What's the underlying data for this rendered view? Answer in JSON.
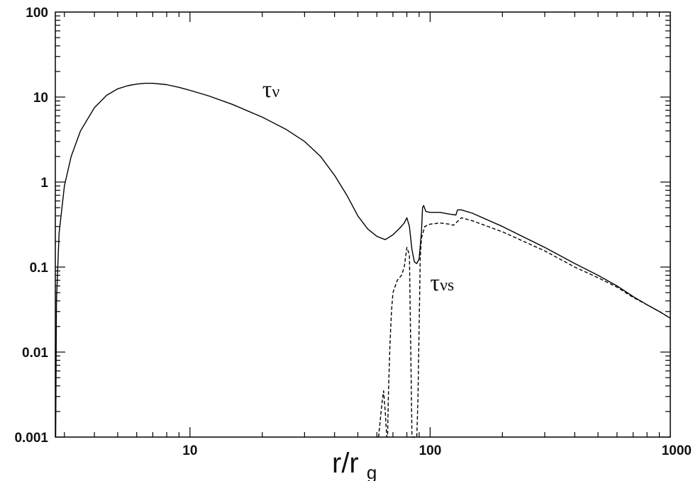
{
  "chart_data": {
    "type": "line",
    "title": "",
    "xlabel": {
      "main": "r/r",
      "sub": "g"
    },
    "ylabel": "",
    "xscale": "log",
    "yscale": "log",
    "xlim": [
      2.75,
      1000
    ],
    "ylim": [
      0.001,
      100
    ],
    "grid": false,
    "x_tick_labels": [
      {
        "value": 10,
        "label": "10"
      },
      {
        "value": 100,
        "label": "100"
      },
      {
        "value": 1000,
        "label": "1000"
      }
    ],
    "y_tick_labels": [
      {
        "value": 0.001,
        "label": "0.001"
      },
      {
        "value": 0.01,
        "label": "0.01"
      },
      {
        "value": 0.1,
        "label": "0.1"
      },
      {
        "value": 1,
        "label": "1"
      },
      {
        "value": 10,
        "label": "10"
      },
      {
        "value": 100,
        "label": "100"
      }
    ],
    "annotations": [
      {
        "main": "τ",
        "sub": "ν",
        "x": 20,
        "y": 10
      },
      {
        "main": "τ",
        "sub": "νs",
        "x": 100,
        "y": 0.053
      }
    ],
    "series": [
      {
        "style": "solid",
        "color": "#000000",
        "points": [
          [
            2.76,
            0.001
          ],
          [
            2.78,
            0.04
          ],
          [
            2.85,
            0.25
          ],
          [
            3.0,
            0.9
          ],
          [
            3.2,
            2.0
          ],
          [
            3.5,
            4.0
          ],
          [
            4.0,
            7.5
          ],
          [
            4.5,
            10.5
          ],
          [
            5.0,
            12.5
          ],
          [
            5.5,
            13.6
          ],
          [
            6.0,
            14.2
          ],
          [
            6.5,
            14.5
          ],
          [
            7.0,
            14.5
          ],
          [
            8.0,
            14.0
          ],
          [
            9.0,
            13.0
          ],
          [
            10.0,
            12.0
          ],
          [
            12.0,
            10.3
          ],
          [
            15.0,
            8.2
          ],
          [
            20.0,
            5.8
          ],
          [
            25.0,
            4.2
          ],
          [
            30.0,
            3.0
          ],
          [
            35.0,
            2.0
          ],
          [
            40.0,
            1.2
          ],
          [
            45.0,
            0.7
          ],
          [
            50.0,
            0.4
          ],
          [
            55.0,
            0.28
          ],
          [
            60.0,
            0.23
          ],
          [
            65.0,
            0.21
          ],
          [
            70.0,
            0.24
          ],
          [
            75.0,
            0.29
          ],
          [
            78.0,
            0.33
          ],
          [
            80.0,
            0.38
          ],
          [
            82.0,
            0.3
          ],
          [
            84.0,
            0.16
          ],
          [
            86.0,
            0.115
          ],
          [
            88.0,
            0.11
          ],
          [
            90.0,
            0.125
          ],
          [
            92.0,
            0.26
          ],
          [
            93.0,
            0.5
          ],
          [
            94.0,
            0.53
          ],
          [
            96.0,
            0.45
          ],
          [
            100.0,
            0.44
          ],
          [
            110.0,
            0.44
          ],
          [
            120.0,
            0.42
          ],
          [
            128.0,
            0.41
          ],
          [
            130.0,
            0.47
          ],
          [
            135.0,
            0.47
          ],
          [
            150.0,
            0.43
          ],
          [
            200.0,
            0.3
          ],
          [
            300.0,
            0.17
          ],
          [
            400.0,
            0.11
          ],
          [
            500.0,
            0.08
          ],
          [
            600.0,
            0.06
          ],
          [
            700.0,
            0.045
          ],
          [
            800.0,
            0.036
          ],
          [
            900.0,
            0.03
          ],
          [
            1000.0,
            0.025
          ]
        ]
      },
      {
        "style": "dashed",
        "color": "#000000",
        "points": [
          [
            61.0,
            0.001
          ],
          [
            63.0,
            0.0025
          ],
          [
            64.0,
            0.0035
          ],
          [
            65.0,
            0.002
          ],
          [
            66.0,
            0.001
          ],
          [
            66.5,
            0.001
          ],
          [
            67.0,
            0.003
          ],
          [
            68.0,
            0.012
          ],
          [
            69.0,
            0.03
          ],
          [
            70.0,
            0.05
          ],
          [
            73.0,
            0.07
          ],
          [
            76.0,
            0.08
          ],
          [
            78.0,
            0.1
          ],
          [
            80.0,
            0.17
          ],
          [
            82.0,
            0.14
          ],
          [
            84.0,
            0.001
          ],
          [
            86.0,
            0.001
          ],
          [
            88.0,
            0.001
          ],
          [
            89.0,
            0.003
          ],
          [
            90.0,
            0.02
          ],
          [
            91.0,
            0.13
          ],
          [
            92.0,
            0.22
          ],
          [
            95.0,
            0.3
          ],
          [
            100.0,
            0.32
          ],
          [
            110.0,
            0.33
          ],
          [
            120.0,
            0.32
          ],
          [
            125.0,
            0.31
          ],
          [
            128.0,
            0.33
          ],
          [
            135.0,
            0.38
          ],
          [
            150.0,
            0.35
          ],
          [
            200.0,
            0.26
          ],
          [
            300.0,
            0.155
          ],
          [
            400.0,
            0.1
          ],
          [
            500.0,
            0.075
          ],
          [
            600.0,
            0.058
          ],
          [
            700.0,
            0.044
          ],
          [
            800.0,
            0.036
          ],
          [
            900.0,
            0.03
          ],
          [
            1000.0,
            0.025
          ]
        ]
      }
    ]
  }
}
